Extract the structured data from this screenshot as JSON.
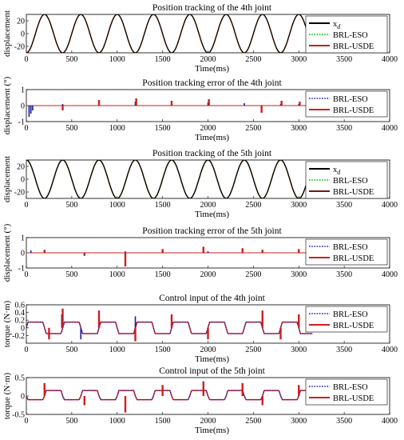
{
  "chart_data": [
    {
      "type": "line",
      "title": "Position tracking of the 4th joint",
      "xlabel": "Time(ms)",
      "ylabel": "displacement",
      "xlim": [
        0,
        4000
      ],
      "ylim": [
        -30,
        30
      ],
      "xticks": [
        0,
        500,
        1000,
        1500,
        2000,
        2500,
        3000,
        3500,
        4000
      ],
      "yticks": [
        -20,
        0,
        20
      ],
      "legend_position": "right",
      "signal": {
        "kind": "sine",
        "amplitude": 30,
        "period_ms": 400,
        "phase_deg": -90,
        "x_end": 3100
      },
      "series": [
        {
          "name": "x",
          "subscript": "d",
          "color": "#000000",
          "dash": "solid",
          "x": [
            0,
            100,
            200,
            300,
            400
          ],
          "y": [
            -30,
            0,
            30,
            0,
            -30
          ]
        },
        {
          "name": "BRL-ESO",
          "color": "#00bb00",
          "dash": "dot"
        },
        {
          "name": "BRL-USDE",
          "color": "#b5261e",
          "dash": "solid"
        }
      ]
    },
    {
      "type": "line",
      "title": "Position tracking error of the 4th joint",
      "xlabel": "Time(ms)",
      "ylabel": "displacement (°)",
      "xlim": [
        0,
        4000
      ],
      "ylim": [
        -1,
        1
      ],
      "xticks": [
        0,
        500,
        1000,
        1500,
        2000,
        2500,
        3000,
        3500,
        4000
      ],
      "yticks": [
        -1,
        0,
        1
      ],
      "legend_position": "right",
      "spike_times": [
        400,
        800,
        1200,
        1600,
        2000,
        2400,
        2800,
        3000
      ],
      "series": [
        {
          "name": "BRL-ESO",
          "color": "#1a1aa8",
          "dash": "dot",
          "spikes": [
            [
              30,
              -0.7
            ],
            [
              50,
              -0.5
            ],
            [
              70,
              -0.3
            ],
            [
              400,
              0.1
            ],
            [
              800,
              0.2
            ],
            [
              1200,
              0.25
            ],
            [
              1600,
              0.15
            ],
            [
              2000,
              0.2
            ],
            [
              2400,
              0.15
            ],
            [
              2800,
              0.1
            ],
            [
              3000,
              0.1
            ]
          ]
        },
        {
          "name": "BRL-USDE",
          "color": "#cc1f1f",
          "dash": "solid",
          "spikes": [
            [
              400,
              -0.3
            ],
            [
              800,
              0.35
            ],
            [
              1210,
              0.45
            ],
            [
              1600,
              0.3
            ],
            [
              2010,
              0.4
            ],
            [
              2590,
              -0.45
            ],
            [
              2810,
              0.3
            ],
            [
              3010,
              0.25
            ]
          ]
        }
      ]
    },
    {
      "type": "line",
      "title": "Position tracking of the 5th joint",
      "xlabel": "Time(ms)",
      "ylabel": "displacement",
      "xlim": [
        0,
        4000
      ],
      "ylim": [
        -30,
        30
      ],
      "xticks": [
        0,
        500,
        1000,
        1500,
        2000,
        2500,
        3000,
        3500,
        4000
      ],
      "yticks": [
        -20,
        0,
        20
      ],
      "legend_position": "right",
      "signal": {
        "kind": "sine",
        "amplitude": 30,
        "period_ms": 400,
        "phase_deg": 90,
        "x_end": 3100
      },
      "series": [
        {
          "name": "x",
          "subscript": "d",
          "color": "#000000",
          "dash": "solid",
          "x": [
            0,
            100,
            200,
            300,
            400
          ],
          "y": [
            30,
            0,
            -30,
            0,
            30
          ]
        },
        {
          "name": "BRL-ESO",
          "color": "#00bb00",
          "dash": "dot"
        },
        {
          "name": "BRL-USDE",
          "color": "#6b1a10",
          "dash": "solid"
        }
      ]
    },
    {
      "type": "line",
      "title": "Position tracking error of the 5th joint",
      "xlabel": "",
      "ylabel": "displacement (°)",
      "xlim": [
        0,
        4000
      ],
      "ylim": [
        -1,
        1
      ],
      "xticks": [
        0,
        500,
        1000,
        1500,
        2000,
        2500,
        3000,
        3500,
        4000
      ],
      "yticks": [
        -1,
        0,
        1
      ],
      "legend_position": "right",
      "series": [
        {
          "name": "BRL-ESO",
          "color": "#1a1aa8",
          "dash": "dot",
          "spikes": [
            [
              50,
              0.15
            ],
            [
              640,
              -0.1
            ],
            [
              1090,
              0.1
            ],
            [
              1500,
              0.1
            ],
            [
              2000,
              0.1
            ]
          ]
        },
        {
          "name": "BRL-USDE",
          "color": "#cc1f1f",
          "dash": "solid",
          "spikes": [
            [
              200,
              0.2
            ],
            [
              640,
              -0.2
            ],
            [
              1090,
              -0.9
            ],
            [
              1500,
              0.25
            ],
            [
              1950,
              0.4
            ],
            [
              2380,
              0.3
            ],
            [
              2600,
              0.2
            ],
            [
              3000,
              0.25
            ]
          ]
        }
      ]
    },
    {
      "type": "line",
      "title": "Control input of the 4th joint",
      "xlabel": "Time(ms)",
      "ylabel": "torque (N·m)",
      "xlim": [
        0,
        4000
      ],
      "ylim": [
        -0.4,
        0.6
      ],
      "xticks": [
        0,
        500,
        1000,
        1500,
        2000,
        2500,
        3000,
        3500,
        4000
      ],
      "yticks": [
        -0.2,
        0,
        0.2,
        0.4,
        0.6
      ],
      "legend_position": "right",
      "signal": {
        "kind": "square",
        "high": 0.15,
        "low": -0.15,
        "period_ms": 400,
        "phase_deg": 0,
        "x_end": 3150
      },
      "series": [
        {
          "name": "BRL-ESO",
          "color": "#1a1aa8",
          "dash": "dot",
          "spikes": [
            [
              390,
              0.35
            ],
            [
              600,
              -0.3
            ],
            [
              1200,
              0.3
            ]
          ]
        },
        {
          "name": "BRL-USDE",
          "color": "#cc1f1f",
          "dash": "solid",
          "spikes": [
            [
              250,
              -0.3
            ],
            [
              400,
              0.5
            ],
            [
              800,
              0.45
            ],
            [
              1200,
              -0.35
            ],
            [
              1600,
              0.35
            ],
            [
              2000,
              -0.3
            ],
            [
              2600,
              0.45
            ],
            [
              2800,
              -0.3
            ],
            [
              3000,
              0.35
            ]
          ]
        }
      ]
    },
    {
      "type": "line",
      "title": "Control input of the 5th joint",
      "xlabel": "Time(ms)",
      "ylabel": "torque (N·m)",
      "xlim": [
        0,
        4000
      ],
      "ylim": [
        -0.5,
        0.5
      ],
      "xticks": [
        0,
        500,
        1000,
        1500,
        2000,
        2500,
        3000,
        3500,
        4000
      ],
      "yticks": [
        -0.5,
        0,
        0.5
      ],
      "legend_position": "right",
      "signal": {
        "kind": "square",
        "high": 0.15,
        "low": -0.1,
        "period_ms": 400,
        "phase_deg": 180,
        "x_end": 3150
      },
      "series": [
        {
          "name": "BRL-ESO",
          "color": "#1a1aa8",
          "dash": "dot",
          "spikes": [
            [
              200,
              0.3
            ],
            [
              640,
              -0.2
            ],
            [
              1090,
              -0.3
            ]
          ]
        },
        {
          "name": "BRL-USDE",
          "color": "#cc1f1f",
          "dash": "solid",
          "spikes": [
            [
              200,
              0.35
            ],
            [
              640,
              -0.25
            ],
            [
              1090,
              -0.45
            ],
            [
              1500,
              0.3
            ],
            [
              1950,
              0.4
            ],
            [
              2380,
              0.35
            ],
            [
              2600,
              -0.25
            ],
            [
              3000,
              0.3
            ]
          ]
        }
      ]
    }
  ]
}
